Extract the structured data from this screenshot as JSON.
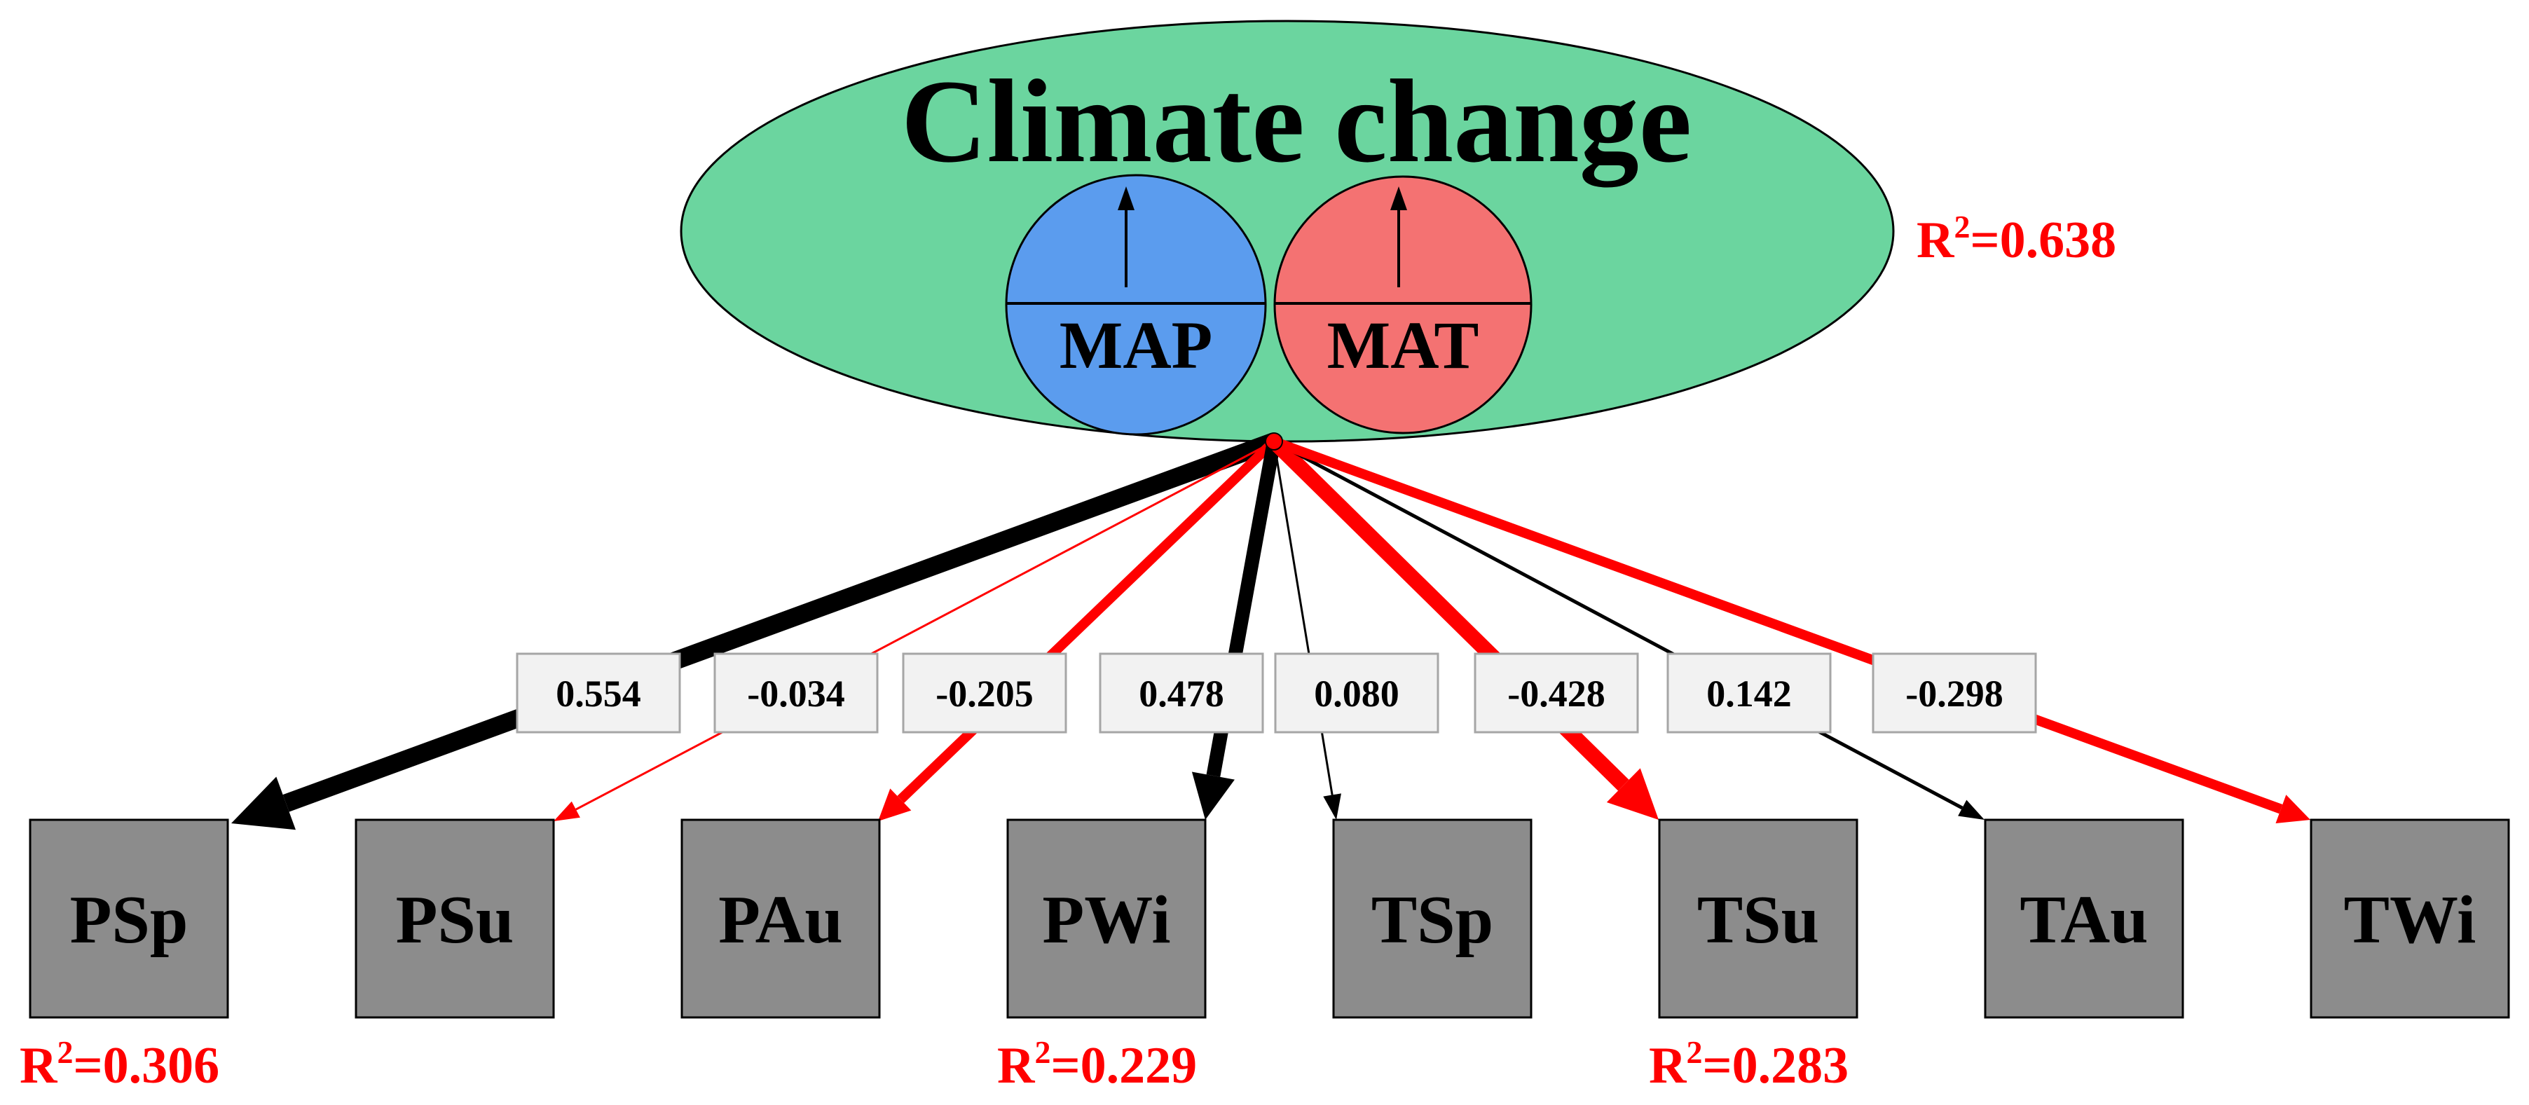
{
  "title": "Climate change",
  "circles": [
    {
      "id": "map",
      "label": "MAP",
      "color": "#5b9cee",
      "direction": "up"
    },
    {
      "id": "mat",
      "label": "MAT",
      "color": "#f47272",
      "direction": "up"
    }
  ],
  "ellipse_color": "#6bd59f",
  "r2_main": {
    "prefix": "R",
    "sup": "2",
    "value": "=0.638"
  },
  "nodes": [
    {
      "id": "psp",
      "label": "PSp"
    },
    {
      "id": "psu",
      "label": "PSu"
    },
    {
      "id": "pau",
      "label": "PAu"
    },
    {
      "id": "pwi",
      "label": "PWi"
    },
    {
      "id": "tsp",
      "label": "TSp"
    },
    {
      "id": "tsu",
      "label": "TSu"
    },
    {
      "id": "tau",
      "label": "TAu"
    },
    {
      "id": "twi",
      "label": "TWi"
    }
  ],
  "paths": [
    {
      "target": "psp",
      "coefficient": "0.554",
      "sign": "positive"
    },
    {
      "target": "psu",
      "coefficient": "-0.034",
      "sign": "negative"
    },
    {
      "target": "pau",
      "coefficient": "-0.205",
      "sign": "negative"
    },
    {
      "target": "pwi",
      "coefficient": "0.478",
      "sign": "positive"
    },
    {
      "target": "tsp",
      "coefficient": "0.080",
      "sign": "positive"
    },
    {
      "target": "tsu",
      "coefficient": "-0.428",
      "sign": "negative"
    },
    {
      "target": "tau",
      "coefficient": "0.142",
      "sign": "positive"
    },
    {
      "target": "twi",
      "coefficient": "-0.298",
      "sign": "negative"
    }
  ],
  "node_r2": [
    {
      "node": "psp",
      "prefix": "R",
      "sup": "2",
      "value": "=0.306"
    },
    {
      "node": "pwi",
      "prefix": "R",
      "sup": "2",
      "value": "=0.229"
    },
    {
      "node": "tsu",
      "prefix": "R",
      "sup": "2",
      "value": "=0.283"
    }
  ],
  "colors": {
    "positive": "#000000",
    "negative": "#ff0000",
    "node_fill": "#8c8c8c",
    "label_box": "#f2f2f2",
    "r2_text": "#ff0000"
  }
}
